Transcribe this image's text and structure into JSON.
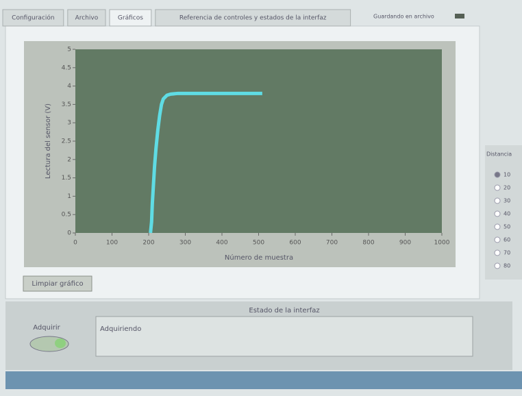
{
  "tabs": [
    "Configuración",
    "Archivo",
    "Gráficos",
    "Referencia de controles y estados de la interfaz"
  ],
  "saving_label": "Guardando en archivo",
  "chart_data": {
    "type": "line",
    "x_label": "Número de muestra",
    "y_label": "Lectura del sensor (V)",
    "x": [
      205,
      208,
      210,
      213,
      216,
      220,
      225,
      230,
      235,
      240,
      250,
      260,
      280,
      300,
      350,
      400,
      450,
      510
    ],
    "values": [
      0,
      0.3,
      0.8,
      1.3,
      1.8,
      2.3,
      2.8,
      3.2,
      3.5,
      3.65,
      3.75,
      3.78,
      3.8,
      3.8,
      3.8,
      3.8,
      3.8,
      3.8
    ],
    "color": "#5fdce4",
    "xlim": [
      0,
      1000
    ],
    "xticks": [
      0,
      100,
      200,
      300,
      400,
      500,
      600,
      700,
      800,
      900,
      1000
    ],
    "ylim": [
      0,
      5
    ],
    "yticks": [
      0,
      0.5,
      1,
      1.5,
      2,
      2.5,
      3,
      3.5,
      4,
      4.5,
      5
    ]
  },
  "clear_button": "Limpiar gráfico",
  "status": {
    "title": "Estado de la interfaz",
    "text": "Adquiriendo"
  },
  "acquire_label": "Adquirir",
  "distance": {
    "title": "Distancia",
    "options": [
      "10",
      "20",
      "30",
      "40",
      "50",
      "60",
      "70",
      "80"
    ]
  }
}
